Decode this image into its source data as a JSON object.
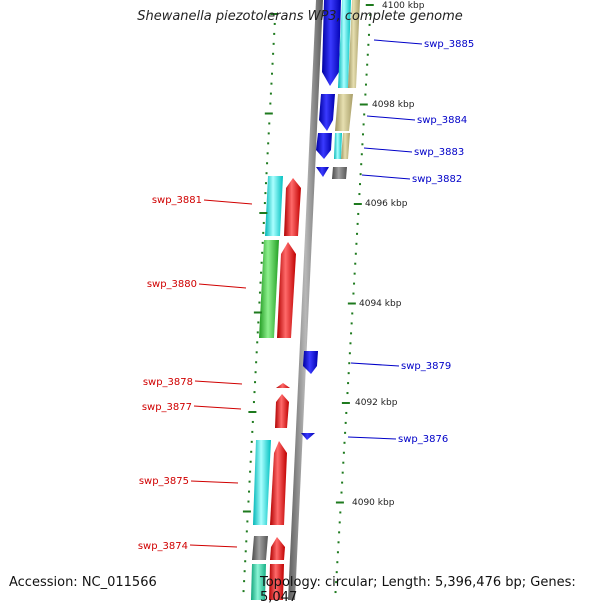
{
  "title": "Shewanella piezotolerans WP3, complete genome",
  "footer": {
    "accession": "Accession: NC_011566",
    "summary": "Topology: circular; Length: 5,396,476 bp; Genes: 5,047"
  },
  "colors": {
    "backbone": "#8a8a8a",
    "tick": "#1e7a1e",
    "plus_label": "#0000c8",
    "minus_label": "#d00000",
    "blue": "#1010ee",
    "cyan": "#11f0f0",
    "khaki": "#c9bf86",
    "gray": "#777777",
    "red": "#ee1010",
    "green": "#33cc33",
    "teal": "#22ddaa"
  },
  "scale_labels": [
    "4100 kbp",
    "4098 kbp",
    "4096 kbp",
    "4094 kbp",
    "4092 kbp",
    "4090 kbp"
  ],
  "genes": [
    {
      "label": "swp_3885",
      "strand": "+"
    },
    {
      "label": "swp_3884",
      "strand": "+"
    },
    {
      "label": "swp_3883",
      "strand": "+"
    },
    {
      "label": "swp_3882",
      "strand": "+"
    },
    {
      "label": "swp_3881",
      "strand": "-"
    },
    {
      "label": "swp_3880",
      "strand": "-"
    },
    {
      "label": "swp_3879",
      "strand": "+"
    },
    {
      "label": "swp_3878",
      "strand": "-"
    },
    {
      "label": "swp_3877",
      "strand": "-"
    },
    {
      "label": "swp_3876",
      "strand": "+"
    },
    {
      "label": "swp_3875",
      "strand": "-"
    },
    {
      "label": "swp_3874",
      "strand": "-"
    }
  ]
}
